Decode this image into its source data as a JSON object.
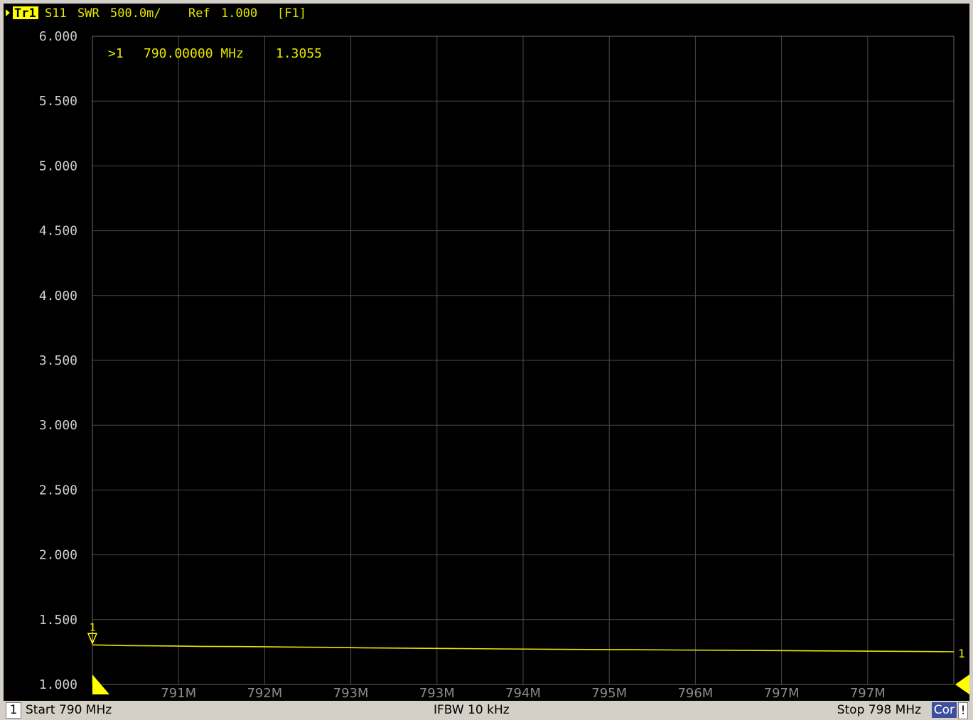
{
  "trace_header": {
    "trace_id": "Tr1",
    "parameter": "S11",
    "format": "SWR",
    "scale": "500.0m/",
    "ref_label": "Ref",
    "ref_value": "1.000",
    "function_key": "[F1]"
  },
  "marker_readout": {
    "marker_id": ">1",
    "frequency": "790.00000 MHz",
    "value": "1.3055"
  },
  "marker_flag_label": "1",
  "trace_end_label": "1",
  "status_bar": {
    "channel": "1",
    "start": "Start 790 MHz",
    "ifbw": "IFBW 10 kHz",
    "stop": "Stop 798 MHz",
    "correction": "Cor",
    "warning": "!"
  },
  "colors": {
    "trace": "#e8e800",
    "grid": "#4a4a4a",
    "axis_text": "#d0d0d0",
    "background": "#000000",
    "marker": "#ffff00"
  },
  "chart_data": {
    "type": "line",
    "title": "",
    "xlabel": "",
    "ylabel": "",
    "xlim": [
      790,
      798
    ],
    "ylim": [
      1.0,
      6.0
    ],
    "grid": true,
    "y_ticks": [
      "1.000",
      "1.500",
      "2.000",
      "2.500",
      "3.000",
      "3.500",
      "4.000",
      "4.500",
      "5.000",
      "5.500",
      "6.000"
    ],
    "x_tick_labels": [
      "791M",
      "792M",
      "793M",
      "793M",
      "794M",
      "795M",
      "796M",
      "797M",
      "797M"
    ],
    "series": [
      {
        "x": [
          790.0,
          790.3,
          790.7,
          791.0,
          791.4,
          791.8,
          792.2,
          792.6,
          793.0,
          793.4,
          793.8,
          794.2,
          794.6,
          795.0,
          795.4,
          795.8,
          796.2,
          796.6,
          797.0,
          797.4,
          797.8,
          798.0
        ],
        "y": [
          1.3055,
          1.3,
          1.297,
          1.294,
          1.292,
          1.289,
          1.286,
          1.282,
          1.279,
          1.277,
          1.274,
          1.272,
          1.27,
          1.268,
          1.266,
          1.264,
          1.262,
          1.26,
          1.258,
          1.256,
          1.254,
          1.252
        ]
      }
    ],
    "markers": [
      {
        "id": "1",
        "x": 790.0,
        "y": 1.3055
      }
    ]
  }
}
